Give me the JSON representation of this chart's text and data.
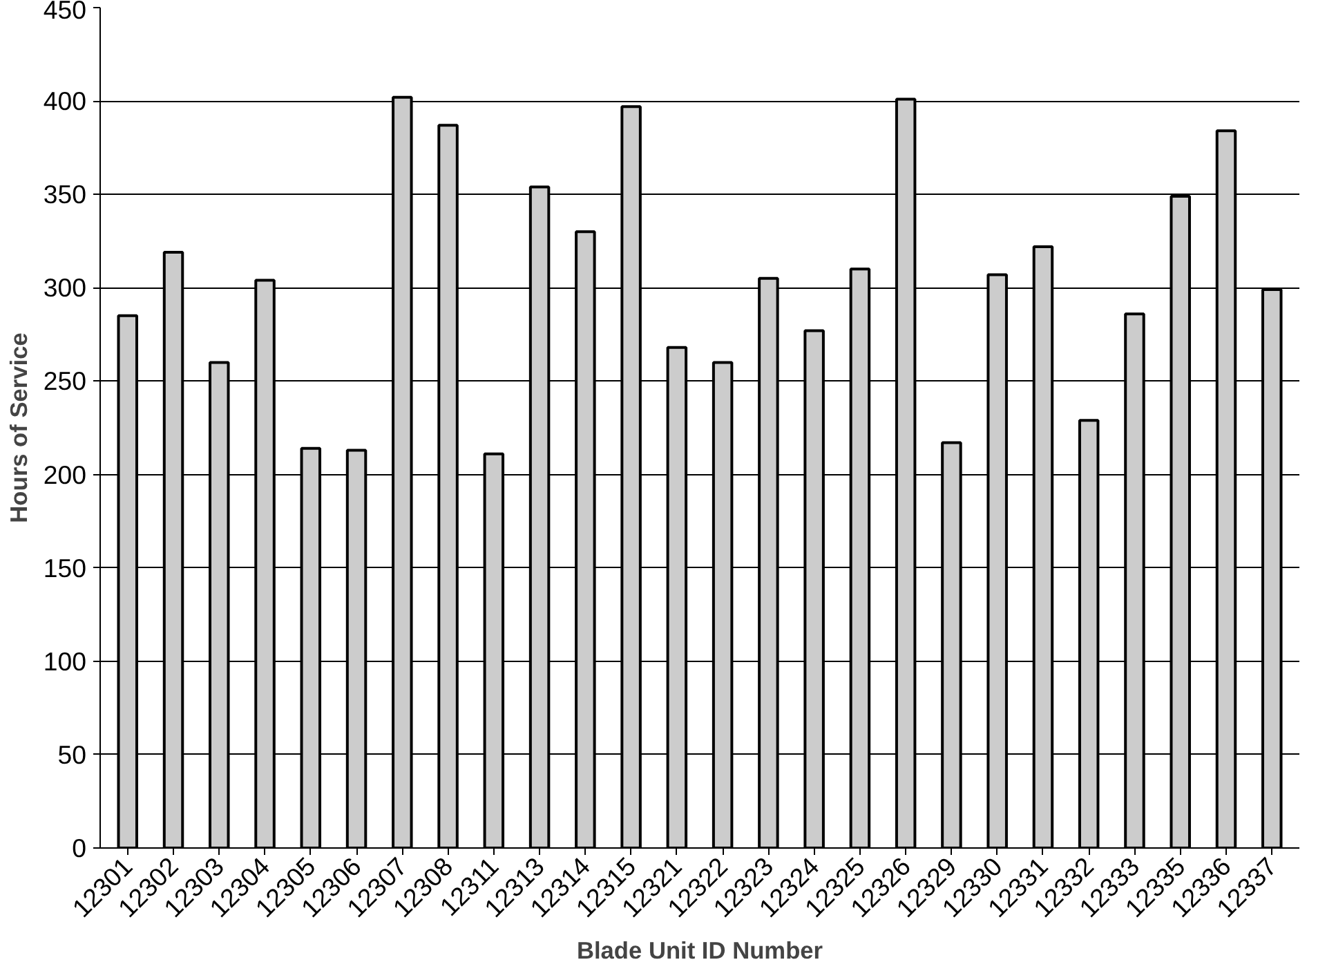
{
  "chart_data": {
    "type": "bar",
    "xlabel": "Blade Unit ID Number",
    "ylabel": "Hours of Service",
    "categories": [
      "12301",
      "12302",
      "12303",
      "12304",
      "12305",
      "12306",
      "12307",
      "12308",
      "12311",
      "12313",
      "12314",
      "12315",
      "12321",
      "12322",
      "12323",
      "12324",
      "12325",
      "12326",
      "12329",
      "12330",
      "12331",
      "12332",
      "12333",
      "12335",
      "12336",
      "12337"
    ],
    "values": [
      285,
      319,
      260,
      304,
      214,
      213,
      402,
      387,
      211,
      354,
      330,
      397,
      268,
      260,
      305,
      277,
      310,
      401,
      217,
      307,
      322,
      229,
      286,
      349,
      384,
      299
    ],
    "color": "#cccccc",
    "ylim": [
      0,
      450
    ],
    "yticks": [
      0,
      50,
      100,
      150,
      200,
      250,
      300,
      350,
      400,
      450
    ],
    "grid": "y"
  }
}
